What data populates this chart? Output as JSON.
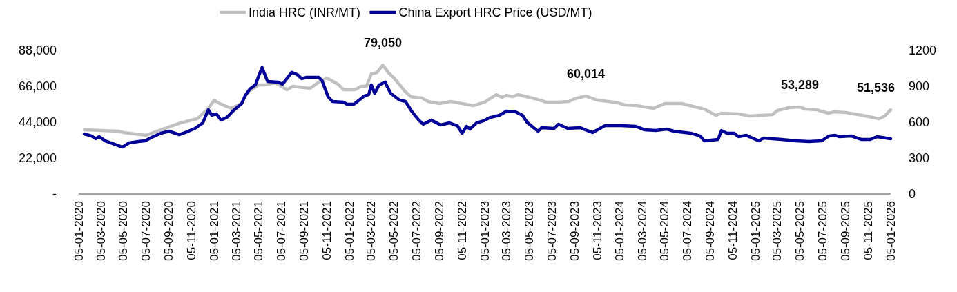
{
  "chart_data": {
    "type": "line",
    "legend": "top",
    "grid": false,
    "xlim": [
      "2020-01-05",
      "2026-01-05"
    ],
    "xticks": [
      {
        "value": "2020-01-05",
        "label": "05-01-2020"
      },
      {
        "value": "2020-03-05",
        "label": "05-03-2020"
      },
      {
        "value": "2020-05-05",
        "label": "05-05-2020"
      },
      {
        "value": "2020-07-05",
        "label": "05-07-2020"
      },
      {
        "value": "2020-09-05",
        "label": "05-09-2020"
      },
      {
        "value": "2020-11-05",
        "label": "05-11-2020"
      },
      {
        "value": "2021-01-05",
        "label": "05-01-2021"
      },
      {
        "value": "2021-03-05",
        "label": "05-03-2021"
      },
      {
        "value": "2021-05-05",
        "label": "05-05-2021"
      },
      {
        "value": "2021-07-05",
        "label": "05-07-2021"
      },
      {
        "value": "2021-09-05",
        "label": "05-09-2021"
      },
      {
        "value": "2021-11-05",
        "label": "05-11-2021"
      },
      {
        "value": "2022-01-05",
        "label": "05-01-2022"
      },
      {
        "value": "2022-03-05",
        "label": "05-03-2022"
      },
      {
        "value": "2022-05-05",
        "label": "05-05-2022"
      },
      {
        "value": "2022-07-05",
        "label": "05-07-2022"
      },
      {
        "value": "2022-09-05",
        "label": "05-09-2022"
      },
      {
        "value": "2022-11-05",
        "label": "05-11-2022"
      },
      {
        "value": "2023-01-05",
        "label": "05-01-2023"
      },
      {
        "value": "2023-03-05",
        "label": "05-03-2023"
      },
      {
        "value": "2023-05-05",
        "label": "05-05-2023"
      },
      {
        "value": "2023-07-05",
        "label": "05-07-2023"
      },
      {
        "value": "2023-09-05",
        "label": "05-09-2023"
      },
      {
        "value": "2023-11-05",
        "label": "05-11-2023"
      },
      {
        "value": "2024-01-05",
        "label": "05-01-2024"
      },
      {
        "value": "2024-03-05",
        "label": "05-03-2024"
      },
      {
        "value": "2024-05-05",
        "label": "05-05-2024"
      },
      {
        "value": "2024-07-05",
        "label": "05-07-2024"
      },
      {
        "value": "2024-09-05",
        "label": "05-09-2024"
      },
      {
        "value": "2024-11-05",
        "label": "05-11-2024"
      },
      {
        "value": "2025-01-05",
        "label": "05-01-2025"
      },
      {
        "value": "2025-03-05",
        "label": "05-03-2025"
      },
      {
        "value": "2025-05-05",
        "label": "05-05-2025"
      },
      {
        "value": "2025-07-05",
        "label": "05-07-2025"
      },
      {
        "value": "2025-09-05",
        "label": "05-09-2025"
      },
      {
        "value": "2025-11-05",
        "label": "05-11-2025"
      },
      {
        "value": "2026-01-05",
        "label": "05-01-2026"
      }
    ],
    "ylim": [
      0,
      88000
    ],
    "yticks": [
      {
        "value": 0,
        "label": "-"
      },
      {
        "value": 22000,
        "label": "22,000"
      },
      {
        "value": 44000,
        "label": "44,000"
      },
      {
        "value": 66000,
        "label": "66,000"
      },
      {
        "value": 88000,
        "label": "88,000"
      }
    ],
    "y2lim": [
      0,
      1200
    ],
    "y2ticks": [
      0,
      300,
      600,
      900,
      1200
    ],
    "annotations": [
      {
        "text": "79,050",
        "x": "2022-04-05",
        "y": 79050
      },
      {
        "text": "60,014",
        "x": "2023-10-05",
        "y": 60014
      },
      {
        "text": "53,289",
        "x": "2025-05-05",
        "y": 53289
      },
      {
        "text": "51,536",
        "x": "2026-01-05",
        "y": 51536
      }
    ],
    "series": [
      {
        "name": "India HRC (INR/MT)",
        "color": "#c0c0c0",
        "x": [
          "2020-01-20",
          "2020-04-20",
          "2020-05-05",
          "2020-07-05",
          "2020-08-20",
          "2020-10-05",
          "2020-11-20",
          "2020-12-20",
          "2021-01-05",
          "2021-01-20",
          "2021-02-20",
          "2021-03-20",
          "2021-04-05",
          "2021-05-05",
          "2021-05-20",
          "2021-06-20",
          "2021-07-20",
          "2021-08-05",
          "2021-09-20",
          "2021-10-20",
          "2021-11-05",
          "2021-12-05",
          "2021-12-20",
          "2022-01-20",
          "2022-02-05",
          "2022-02-20",
          "2022-03-05",
          "2022-03-20",
          "2022-04-05",
          "2022-04-20",
          "2022-05-05",
          "2022-06-05",
          "2022-06-20",
          "2022-07-20",
          "2022-08-05",
          "2022-09-05",
          "2022-10-05",
          "2022-11-05",
          "2022-12-05",
          "2023-01-05",
          "2023-02-05",
          "2023-02-20",
          "2023-03-05",
          "2023-03-20",
          "2023-04-05",
          "2023-05-20",
          "2023-06-20",
          "2023-07-20",
          "2023-08-20",
          "2023-09-05",
          "2023-10-05",
          "2023-11-05",
          "2023-12-05",
          "2023-12-20",
          "2024-01-20",
          "2024-02-20",
          "2024-04-05",
          "2024-05-05",
          "2024-06-20",
          "2024-08-20",
          "2024-09-20",
          "2024-10-05",
          "2024-11-20",
          "2024-12-20",
          "2025-01-20",
          "2025-02-20",
          "2025-03-05",
          "2025-04-05",
          "2025-05-05",
          "2025-05-20",
          "2025-06-20",
          "2025-07-20",
          "2025-08-05",
          "2025-09-05",
          "2025-10-20",
          "2025-12-05",
          "2025-12-20",
          "2026-01-05"
        ],
        "values": [
          39300,
          38500,
          37650,
          36000,
          39800,
          43500,
          46100,
          52500,
          57500,
          55400,
          52500,
          55400,
          62600,
          66800,
          66800,
          68100,
          63900,
          66000,
          64700,
          69400,
          71100,
          67300,
          63900,
          63900,
          66000,
          66000,
          73600,
          74400,
          79050,
          74400,
          71100,
          62600,
          59600,
          58800,
          56700,
          55400,
          56700,
          55400,
          54100,
          56300,
          60900,
          59200,
          60500,
          59600,
          60900,
          58400,
          56300,
          56300,
          56700,
          58400,
          60014,
          57500,
          56700,
          56300,
          54600,
          54100,
          52500,
          55400,
          55400,
          52000,
          48200,
          49500,
          49100,
          47800,
          48200,
          48600,
          51200,
          52900,
          53289,
          52000,
          51600,
          49500,
          50300,
          49900,
          48200,
          46100,
          47800,
          51536
        ]
      },
      {
        "name": "China Export HRC Price (USD/MT)",
        "color": "#000099",
        "axis": "y2",
        "x": [
          "2020-01-20",
          "2020-02-08",
          "2020-02-20",
          "2020-02-29",
          "2020-03-17",
          "2020-05-02",
          "2020-05-20",
          "2020-06-14",
          "2020-07-02",
          "2020-07-20",
          "2020-08-14",
          "2020-09-05",
          "2020-10-02",
          "2020-10-23",
          "2020-11-14",
          "2020-12-05",
          "2020-12-20",
          "2020-12-29",
          "2021-01-11",
          "2021-01-23",
          "2021-02-08",
          "2021-02-26",
          "2021-03-20",
          "2021-03-29",
          "2021-04-11",
          "2021-04-26",
          "2021-05-05",
          "2021-05-14",
          "2021-05-29",
          "2021-06-26",
          "2021-07-08",
          "2021-08-02",
          "2021-08-17",
          "2021-08-29",
          "2021-09-11",
          "2021-10-14",
          "2021-10-23",
          "2021-11-08",
          "2021-11-20",
          "2021-12-20",
          "2021-12-29",
          "2022-01-17",
          "2022-02-14",
          "2022-02-26",
          "2022-03-05",
          "2022-03-14",
          "2022-03-26",
          "2022-04-11",
          "2022-04-26",
          "2022-05-20",
          "2022-06-05",
          "2022-06-23",
          "2022-07-11",
          "2022-07-23",
          "2022-08-14",
          "2022-09-08",
          "2022-10-02",
          "2022-10-23",
          "2022-11-05",
          "2022-11-17",
          "2022-11-26",
          "2022-12-14",
          "2023-01-02",
          "2023-01-20",
          "2023-02-14",
          "2023-03-05",
          "2023-03-29",
          "2023-04-17",
          "2023-04-29",
          "2023-05-17",
          "2023-05-29",
          "2023-06-08",
          "2023-07-11",
          "2023-07-23",
          "2023-08-17",
          "2023-09-20",
          "2023-10-08",
          "2023-10-23",
          "2023-11-26",
          "2024-01-08",
          "2024-02-17",
          "2024-03-11",
          "2024-04-11",
          "2024-05-11",
          "2024-05-29",
          "2024-07-14",
          "2024-08-08",
          "2024-08-20",
          "2024-09-08",
          "2024-09-26",
          "2024-10-05",
          "2024-10-20",
          "2024-11-08",
          "2024-11-20",
          "2024-12-11",
          "2025-01-14",
          "2025-01-26",
          "2025-03-17",
          "2025-04-23",
          "2025-05-29",
          "2025-07-02",
          "2025-07-23",
          "2025-08-08",
          "2025-08-20",
          "2025-09-20",
          "2025-10-17",
          "2025-11-11",
          "2025-11-29",
          "2026-01-05"
        ],
        "values": [
          502,
          485,
          462,
          479,
          444,
          392,
          427,
          439,
          444,
          473,
          508,
          525,
          496,
          519,
          548,
          594,
          704,
          658,
          669,
          617,
          640,
          698,
          756,
          819,
          877,
          912,
          987,
          1056,
          940,
          935,
          917,
          1016,
          998,
          964,
          975,
          975,
          946,
          814,
          773,
          767,
          750,
          750,
          819,
          831,
          912,
          842,
          912,
          935,
          842,
          785,
          773,
          687,
          617,
          583,
          617,
          577,
          594,
          571,
          508,
          565,
          542,
          594,
          612,
          640,
          658,
          692,
          687,
          658,
          600,
          554,
          525,
          554,
          548,
          583,
          548,
          554,
          531,
          514,
          571,
          571,
          565,
          537,
          531,
          542,
          525,
          508,
          485,
          444,
          450,
          456,
          531,
          508,
          508,
          479,
          490,
          444,
          467,
          456,
          444,
          439,
          444,
          485,
          490,
          479,
          485,
          456,
          456,
          479,
          462
        ]
      }
    ]
  }
}
